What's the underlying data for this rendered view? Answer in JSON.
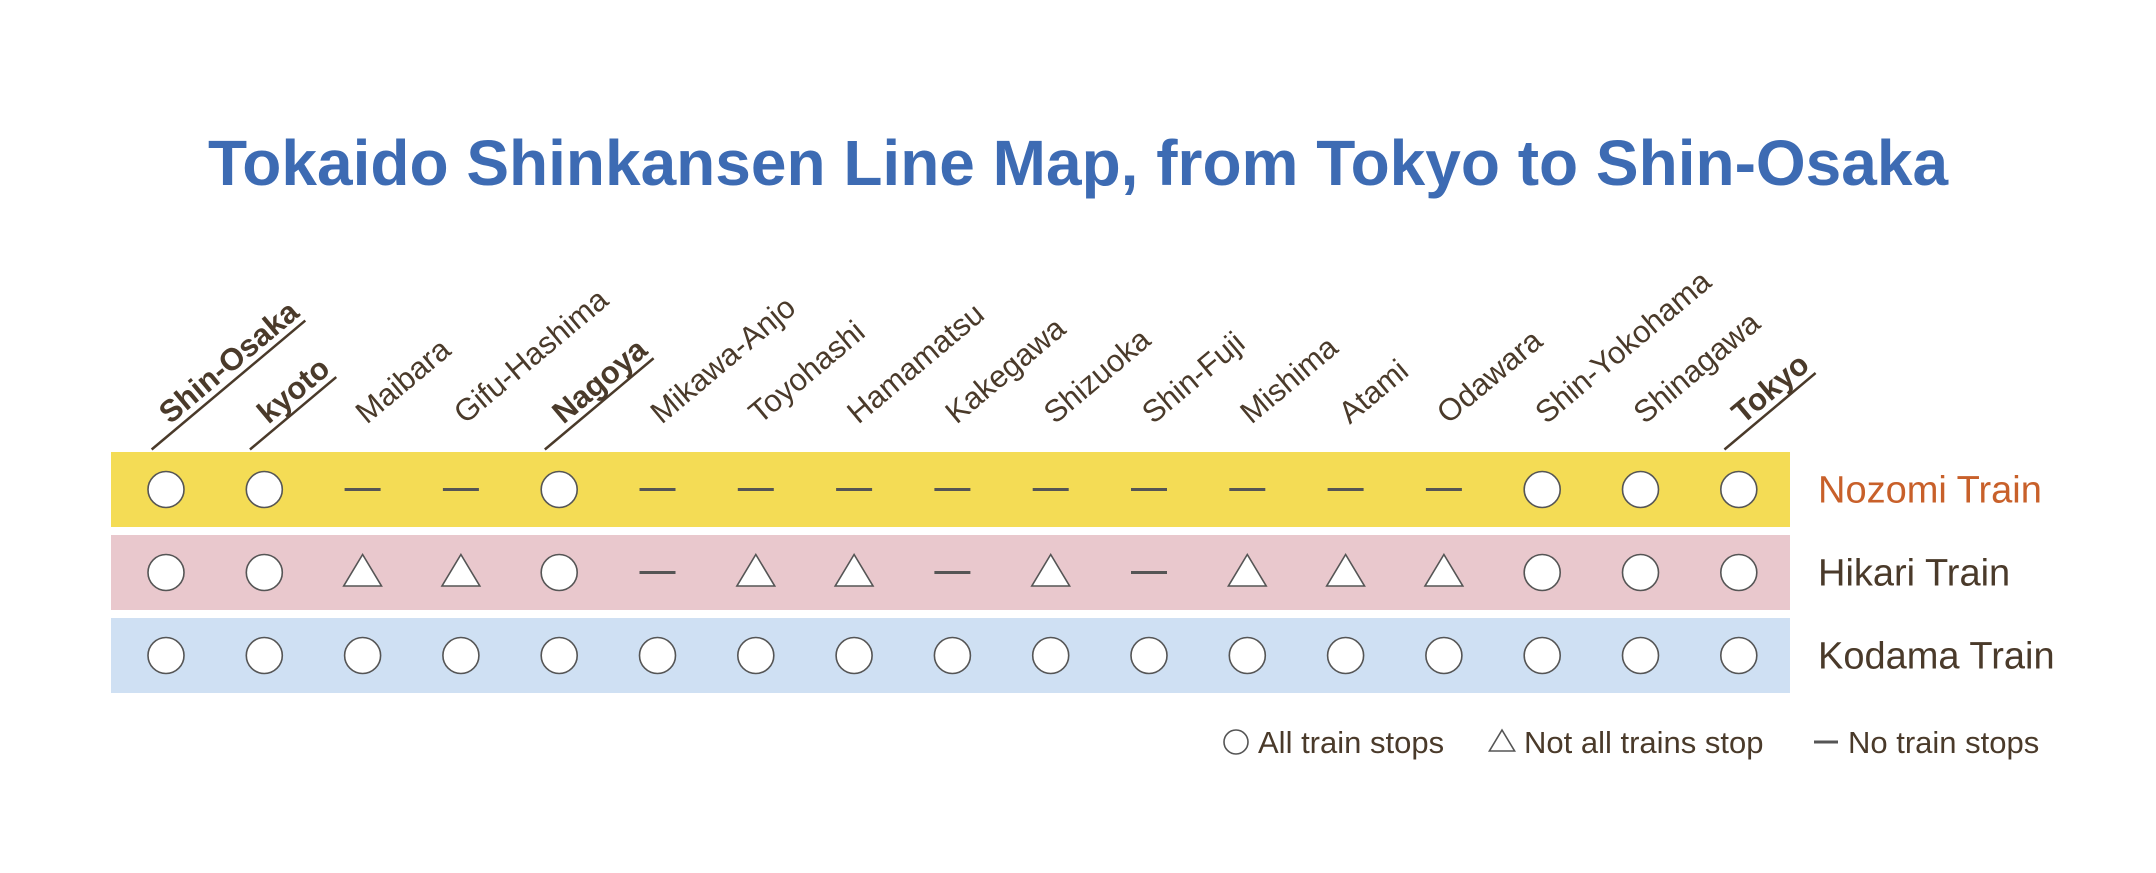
{
  "title": "Tokaido Shinkansen Line Map, from Tokyo to Shin-Osaka",
  "stations": [
    {
      "name": "Shin-Osaka",
      "major": true
    },
    {
      "name": "kyoto",
      "major": true
    },
    {
      "name": "Maibara",
      "major": false
    },
    {
      "name": "Gifu-Hashima",
      "major": false
    },
    {
      "name": "Nagoya",
      "major": true
    },
    {
      "name": "Mikawa-Anjo",
      "major": false
    },
    {
      "name": "Toyohashi",
      "major": false
    },
    {
      "name": "Hamamatsu",
      "major": false
    },
    {
      "name": "Kakegawa",
      "major": false
    },
    {
      "name": "Shizuoka",
      "major": false
    },
    {
      "name": "Shin-Fuji",
      "major": false
    },
    {
      "name": "Mishima",
      "major": false
    },
    {
      "name": "Atami",
      "major": false
    },
    {
      "name": "Odawara",
      "major": false
    },
    {
      "name": "Shin-Yokohama",
      "major": false
    },
    {
      "name": "Shinagawa",
      "major": false
    },
    {
      "name": "Tokyo",
      "major": true
    }
  ],
  "trains": [
    {
      "name": "Nozomi Train",
      "color": "#f4dc55",
      "label_color": "#c8602a",
      "stops": [
        "circle",
        "circle",
        "dash",
        "dash",
        "circle",
        "dash",
        "dash",
        "dash",
        "dash",
        "dash",
        "dash",
        "dash",
        "dash",
        "dash",
        "circle",
        "circle",
        "circle"
      ]
    },
    {
      "name": "Hikari Train",
      "color": "#e9c8cd",
      "label_color": "#4a3a2a",
      "stops": [
        "circle",
        "circle",
        "triangle",
        "triangle",
        "circle",
        "dash",
        "triangle",
        "triangle",
        "dash",
        "triangle",
        "dash",
        "triangle",
        "triangle",
        "triangle",
        "circle",
        "circle",
        "circle"
      ]
    },
    {
      "name": "Kodama Train",
      "color": "#cfe0f3",
      "label_color": "#4a3a2a",
      "stops": [
        "circle",
        "circle",
        "circle",
        "circle",
        "circle",
        "circle",
        "circle",
        "circle",
        "circle",
        "circle",
        "circle",
        "circle",
        "circle",
        "circle",
        "circle",
        "circle",
        "circle"
      ]
    }
  ],
  "legend": [
    {
      "symbol": "circle",
      "label": "All train stops"
    },
    {
      "symbol": "triangle",
      "label": "Not all trains stop"
    },
    {
      "symbol": "dash",
      "label": "No train stops"
    }
  ]
}
